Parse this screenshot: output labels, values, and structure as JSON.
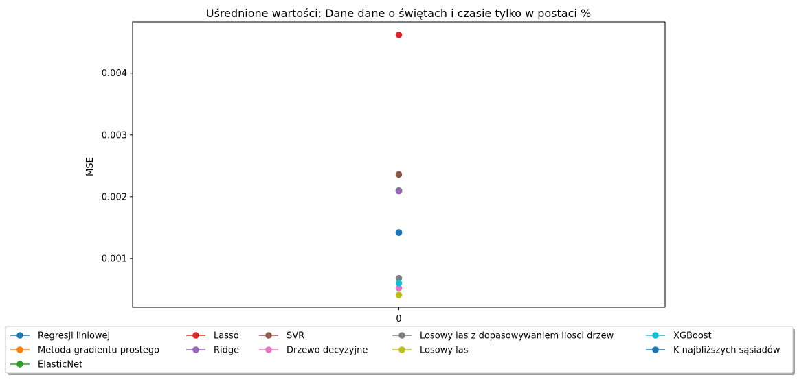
{
  "chart_data": {
    "type": "scatter",
    "title": "Uśrednione wartości: Dane dane o świętach i czasie tylko w postaci %",
    "xlabel": "",
    "ylabel": "MSE",
    "x_ticks": [
      "0"
    ],
    "y_ticks": [
      "0.001",
      "0.002",
      "0.003",
      "0.004"
    ],
    "ylim": [
      0.00021,
      0.00483
    ],
    "xlim": [
      -0.06,
      0.06
    ],
    "grid": false,
    "legend_position": "bottom",
    "series": [
      {
        "name": "Regresji liniowej",
        "color": "#1f77b4",
        "x": [
          0
        ],
        "y": [
          0.00142
        ]
      },
      {
        "name": "Metoda gradientu prostego",
        "color": "#ff7f0e",
        "x": [
          0
        ],
        "y": [
          0.0021
        ]
      },
      {
        "name": "ElasticNet",
        "color": "#2ca02c",
        "x": [
          0
        ],
        "y": [
          0.0021
        ]
      },
      {
        "name": "Lasso",
        "color": "#d62728",
        "x": [
          0
        ],
        "y": [
          0.00462
        ]
      },
      {
        "name": "Ridge",
        "color": "#9467bd",
        "x": [
          0
        ],
        "y": [
          0.00209
        ]
      },
      {
        "name": "SVR",
        "color": "#8c564b",
        "x": [
          0
        ],
        "y": [
          0.00236
        ]
      },
      {
        "name": "Drzewo decyzyjne",
        "color": "#e377c2",
        "x": [
          0
        ],
        "y": [
          0.00052
        ]
      },
      {
        "name": "Losowy las z dopasowywaniem ilosci drzew",
        "color": "#7f7f7f",
        "x": [
          0
        ],
        "y": [
          0.00068
        ]
      },
      {
        "name": "Losowy las",
        "color": "#bcbd22",
        "x": [
          0
        ],
        "y": [
          0.00041
        ]
      },
      {
        "name": "XGBoost",
        "color": "#17becf",
        "x": [
          0
        ],
        "y": [
          0.0006
        ]
      },
      {
        "name": "K najbliższych sąsiadów",
        "color": "#1f77b4",
        "x": [
          0
        ],
        "y": [
          0.00142
        ]
      }
    ]
  }
}
